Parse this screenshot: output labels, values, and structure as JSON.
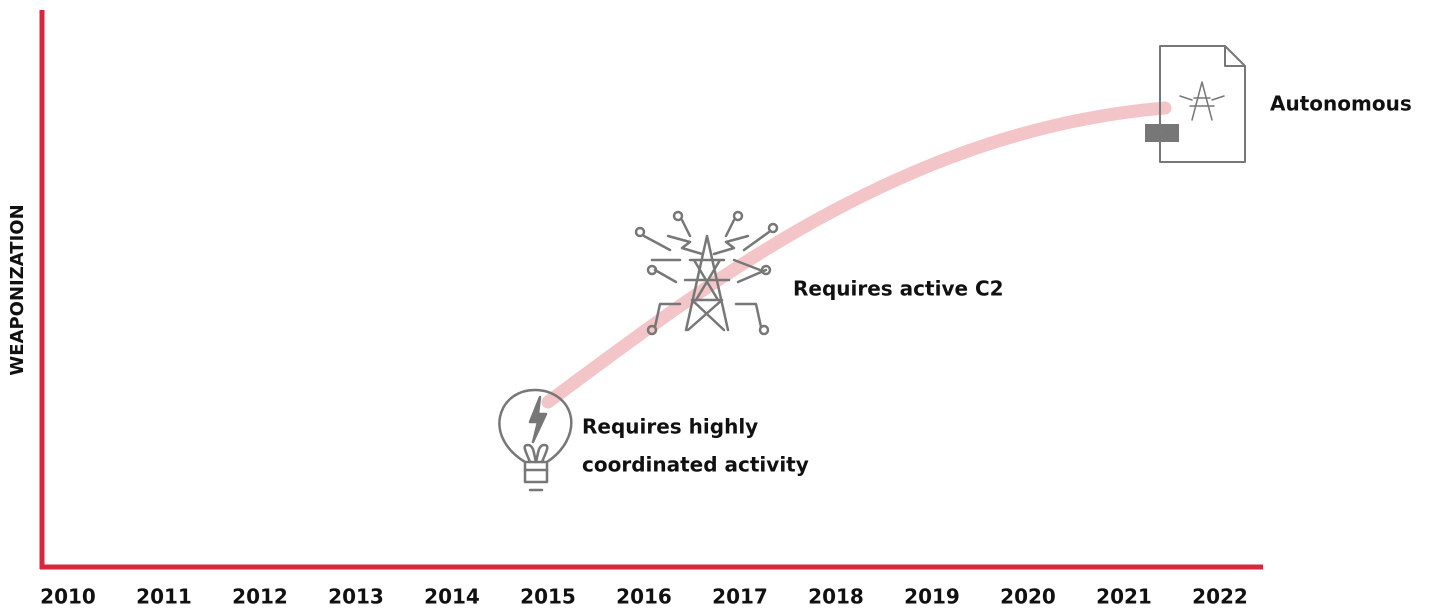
{
  "axis": {
    "y_label": "WEAPONIZATION",
    "years": [
      "2010",
      "2011",
      "2012",
      "2013",
      "2014",
      "2015",
      "2016",
      "2017",
      "2018",
      "2019",
      "2020",
      "2021",
      "2022"
    ]
  },
  "milestones": [
    {
      "lines": [
        "Requires highly",
        "coordinated activity"
      ]
    },
    {
      "lines": [
        "Requires active C2"
      ]
    },
    {
      "lines": [
        "Autonomous"
      ]
    }
  ]
}
